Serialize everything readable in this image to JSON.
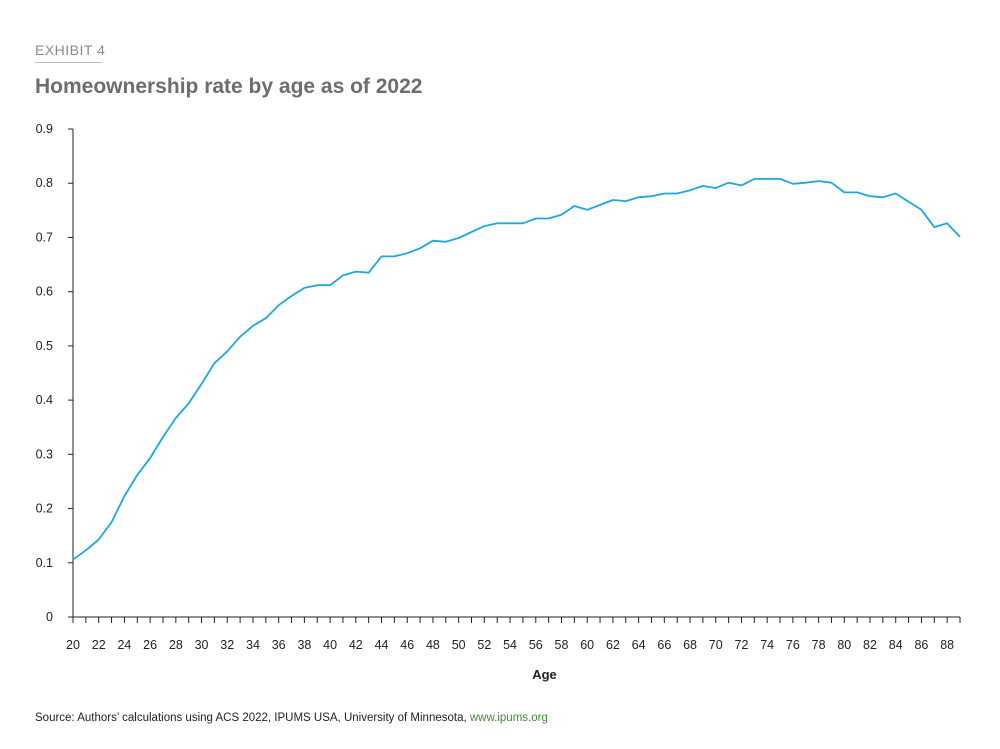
{
  "header": {
    "exhibit_label": "EXHIBIT 4",
    "title": "Homeownership rate by age as of 2022"
  },
  "footer": {
    "source_text": "Source: Authors’ calculations using ACS 2022, IPUMS USA, University of Minnesota, ",
    "source_link": "www.ipums.org",
    "link_color": "#3f8f2f"
  },
  "chart_data": {
    "type": "line",
    "title": "Homeownership rate by age as of 2022",
    "xlabel": "Age",
    "ylabel": "",
    "xlim": [
      20,
      89
    ],
    "ylim": [
      0,
      0.9
    ],
    "yticks": [
      0,
      0.1,
      0.2,
      0.3,
      0.4,
      0.5,
      0.6,
      0.7,
      0.8,
      0.9
    ],
    "ytick_labels": [
      "0",
      "0.1",
      "0.2",
      "0.3",
      "0.4",
      "0.5",
      "0.6",
      "0.7",
      "0.8",
      "0.9"
    ],
    "xtick_labels": [
      "20",
      "22",
      "24",
      "26",
      "28",
      "30",
      "32",
      "34",
      "36",
      "38",
      "40",
      "42",
      "44",
      "46",
      "48",
      "50",
      "52",
      "54",
      "56",
      "58",
      "60",
      "62",
      "64",
      "66",
      "68",
      "70",
      "72",
      "74",
      "76",
      "78",
      "80",
      "82",
      "84",
      "86",
      "88"
    ],
    "grid": false,
    "legend": "none",
    "line_color": "#1ea7dc",
    "series": [
      {
        "x": [
          20,
          21,
          22,
          23,
          24,
          25,
          26,
          27,
          28,
          29,
          30,
          31,
          32,
          33,
          34,
          35,
          36,
          37,
          38,
          39,
          40,
          41,
          42,
          43,
          44,
          45,
          46,
          47,
          48,
          49,
          50,
          51,
          52,
          53,
          54,
          55,
          56,
          57,
          58,
          59,
          60,
          61,
          62,
          63,
          64,
          65,
          66,
          67,
          68,
          69,
          70,
          71,
          72,
          73,
          74,
          75,
          76,
          77,
          78,
          79,
          80,
          81,
          82,
          83,
          84,
          85,
          86,
          87,
          88,
          89
        ],
        "values": [
          0.106,
          0.123,
          0.143,
          0.175,
          0.223,
          0.262,
          0.293,
          0.332,
          0.367,
          0.394,
          0.43,
          0.468,
          0.49,
          0.517,
          0.537,
          0.551,
          0.575,
          0.592,
          0.607,
          0.612,
          0.612,
          0.63,
          0.637,
          0.635,
          0.665,
          0.665,
          0.671,
          0.68,
          0.694,
          0.692,
          0.699,
          0.71,
          0.721,
          0.726,
          0.726,
          0.726,
          0.735,
          0.735,
          0.742,
          0.758,
          0.751,
          0.76,
          0.769,
          0.767,
          0.774,
          0.776,
          0.781,
          0.781,
          0.787,
          0.795,
          0.791,
          0.801,
          0.796,
          0.808,
          0.808,
          0.808,
          0.799,
          0.801,
          0.804,
          0.801,
          0.783,
          0.783,
          0.776,
          0.774,
          0.781,
          0.766,
          0.751,
          0.719,
          0.726,
          0.701
        ]
      }
    ]
  }
}
